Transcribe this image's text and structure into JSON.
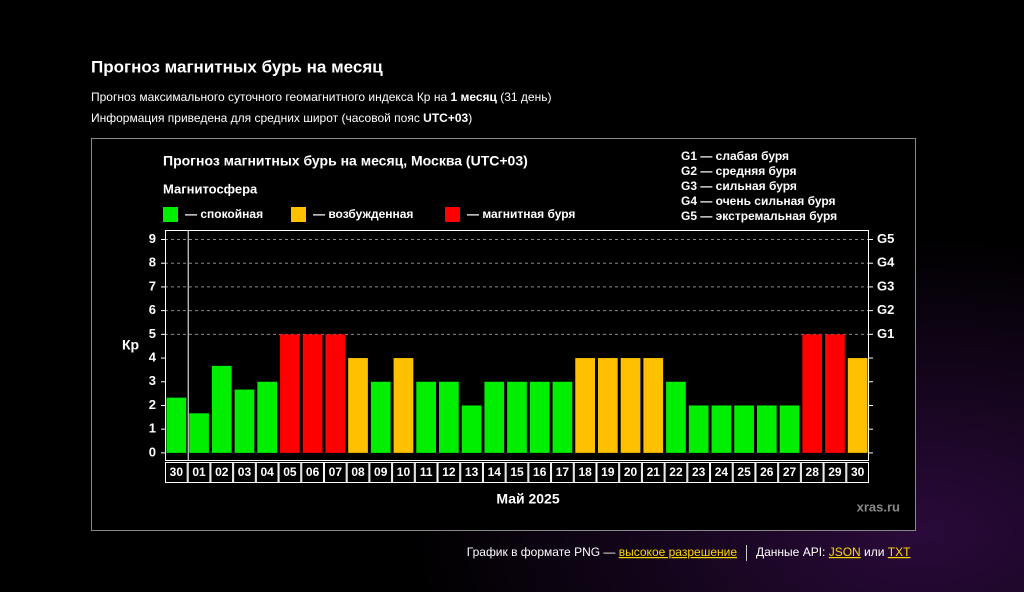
{
  "header": {
    "title": "Прогноз магнитных бурь на месяц",
    "subtitle_1": [
      "Прогноз максимального суточного геомагнитного индекса Кр на ",
      "1 месяц",
      " (31 день)"
    ],
    "subtitle_2": [
      "Информация приведена для средних широт (часовой пояс ",
      "UTC+03",
      ")"
    ]
  },
  "chart_data": {
    "type": "bar",
    "title": "Прогноз магнитных бурь на месяц, Москва (UTC+03)",
    "legend_title": "Магнитосфера",
    "legend": [
      {
        "label": "— спокойная",
        "color": "#00ee00"
      },
      {
        "label": "— возбужденная",
        "color": "#ffc000"
      },
      {
        "label": "— магнитная буря",
        "color": "#ff0000"
      }
    ],
    "storm_legend": [
      "G1 — слабая буря",
      "G2 — средняя буря",
      "G3 — сильная буря",
      "G4 — очень сильная буря",
      "G5 — экстремальная буря"
    ],
    "y_label": "Кр",
    "x_label": "Май 2025",
    "credit": "xras.ru",
    "categories": [
      "30",
      "01",
      "02",
      "03",
      "04",
      "05",
      "06",
      "07",
      "08",
      "09",
      "10",
      "11",
      "12",
      "13",
      "14",
      "15",
      "16",
      "17",
      "18",
      "19",
      "20",
      "21",
      "22",
      "23",
      "24",
      "25",
      "26",
      "27",
      "28",
      "29",
      "30"
    ],
    "values": [
      2.33,
      1.67,
      3.67,
      2.67,
      3,
      5,
      5,
      5,
      4,
      3,
      4,
      3,
      3,
      2,
      3,
      3,
      3,
      3,
      4,
      4,
      4,
      4,
      3,
      2,
      2,
      2,
      2,
      2,
      5,
      5,
      4
    ],
    "colors": [
      "#00ee00",
      "#00ee00",
      "#00ee00",
      "#00ee00",
      "#00ee00",
      "#ff0000",
      "#ff0000",
      "#ff0000",
      "#ffc000",
      "#00ee00",
      "#ffc000",
      "#00ee00",
      "#00ee00",
      "#00ee00",
      "#00ee00",
      "#00ee00",
      "#00ee00",
      "#00ee00",
      "#ffc000",
      "#ffc000",
      "#ffc000",
      "#ffc000",
      "#00ee00",
      "#00ee00",
      "#00ee00",
      "#00ee00",
      "#00ee00",
      "#00ee00",
      "#ff0000",
      "#ff0000",
      "#ffc000"
    ],
    "ylim": [
      -0.3,
      9.4
    ],
    "yticks": [
      0,
      1,
      2,
      3,
      4,
      5,
      6,
      7,
      8,
      9
    ],
    "y2ticks": [
      {
        "value": 5,
        "label": "G1"
      },
      {
        "value": 6,
        "label": "G2"
      },
      {
        "value": 7,
        "label": "G3"
      },
      {
        "value": 8,
        "label": "G4"
      },
      {
        "value": 9,
        "label": "G5"
      }
    ],
    "grid_from": 5
  },
  "footer": {
    "png": [
      "График в формате ",
      "PNG",
      " — ",
      "высокое разрешение"
    ],
    "api": [
      "Данные API: ",
      "JSON",
      " или ",
      "TXT"
    ]
  }
}
